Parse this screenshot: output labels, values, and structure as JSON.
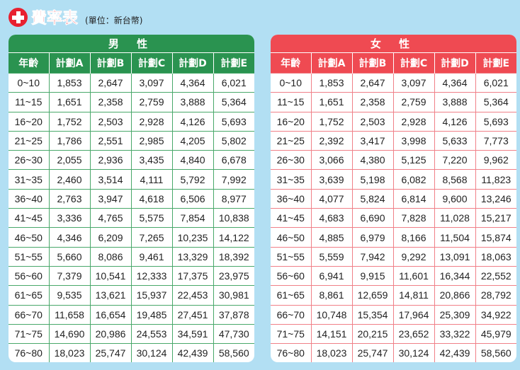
{
  "title": "費率表",
  "unit": "(單位：新台幣)",
  "colors": {
    "male": "#2a9350",
    "female": "#ef4a52",
    "accent": "#e8202f"
  },
  "headers": [
    "年齡",
    "計劃A",
    "計劃B",
    "計劃C",
    "計劃D",
    "計劃E"
  ],
  "male": {
    "label": "男 性",
    "rows": [
      [
        "0~10",
        "1,853",
        "2,647",
        "3,097",
        "4,364",
        "6,021"
      ],
      [
        "11~15",
        "1,651",
        "2,358",
        "2,759",
        "3,888",
        "5,364"
      ],
      [
        "16~20",
        "1,752",
        "2,503",
        "2,928",
        "4,126",
        "5,693"
      ],
      [
        "21~25",
        "1,786",
        "2,551",
        "2,985",
        "4,205",
        "5,802"
      ],
      [
        "26~30",
        "2,055",
        "2,936",
        "3,435",
        "4,840",
        "6,678"
      ],
      [
        "31~35",
        "2,460",
        "3,514",
        "4,111",
        "5,792",
        "7,992"
      ],
      [
        "36~40",
        "2,763",
        "3,947",
        "4,618",
        "6,506",
        "8,977"
      ],
      [
        "41~45",
        "3,336",
        "4,765",
        "5,575",
        "7,854",
        "10,838"
      ],
      [
        "46~50",
        "4,346",
        "6,209",
        "7,265",
        "10,235",
        "14,122"
      ],
      [
        "51~55",
        "5,660",
        "8,086",
        "9,461",
        "13,329",
        "18,392"
      ],
      [
        "56~60",
        "7,379",
        "10,541",
        "12,333",
        "17,375",
        "23,975"
      ],
      [
        "61~65",
        "9,535",
        "13,621",
        "15,937",
        "22,453",
        "30,981"
      ],
      [
        "66~70",
        "11,658",
        "16,654",
        "19,485",
        "27,451",
        "37,878"
      ],
      [
        "71~75",
        "14,690",
        "20,986",
        "24,553",
        "34,591",
        "47,730"
      ],
      [
        "76~80",
        "18,023",
        "25,747",
        "30,124",
        "42,439",
        "58,560"
      ]
    ]
  },
  "female": {
    "label": "女 性",
    "rows": [
      [
        "0~10",
        "1,853",
        "2,647",
        "3,097",
        "4,364",
        "6,021"
      ],
      [
        "11~15",
        "1,651",
        "2,358",
        "2,759",
        "3,888",
        "5,364"
      ],
      [
        "16~20",
        "1,752",
        "2,503",
        "2,928",
        "4,126",
        "5,693"
      ],
      [
        "21~25",
        "2,392",
        "3,417",
        "3,998",
        "5,633",
        "7,773"
      ],
      [
        "26~30",
        "3,066",
        "4,380",
        "5,125",
        "7,220",
        "9,962"
      ],
      [
        "31~35",
        "3,639",
        "5,198",
        "6,082",
        "8,568",
        "11,823"
      ],
      [
        "36~40",
        "4,077",
        "5,824",
        "6,814",
        "9,600",
        "13,246"
      ],
      [
        "41~45",
        "4,683",
        "6,690",
        "7,828",
        "11,028",
        "15,217"
      ],
      [
        "46~50",
        "4,885",
        "6,979",
        "8,166",
        "11,504",
        "15,874"
      ],
      [
        "51~55",
        "5,559",
        "7,942",
        "9,292",
        "13,091",
        "18,063"
      ],
      [
        "56~60",
        "6,941",
        "9,915",
        "11,601",
        "16,344",
        "22,552"
      ],
      [
        "61~65",
        "8,861",
        "12,659",
        "14,811",
        "20,866",
        "28,792"
      ],
      [
        "66~70",
        "10,748",
        "15,354",
        "17,964",
        "25,309",
        "34,922"
      ],
      [
        "71~75",
        "14,151",
        "20,215",
        "23,652",
        "33,322",
        "45,979"
      ],
      [
        "76~80",
        "18,023",
        "25,747",
        "30,124",
        "42,439",
        "58,560"
      ]
    ]
  }
}
